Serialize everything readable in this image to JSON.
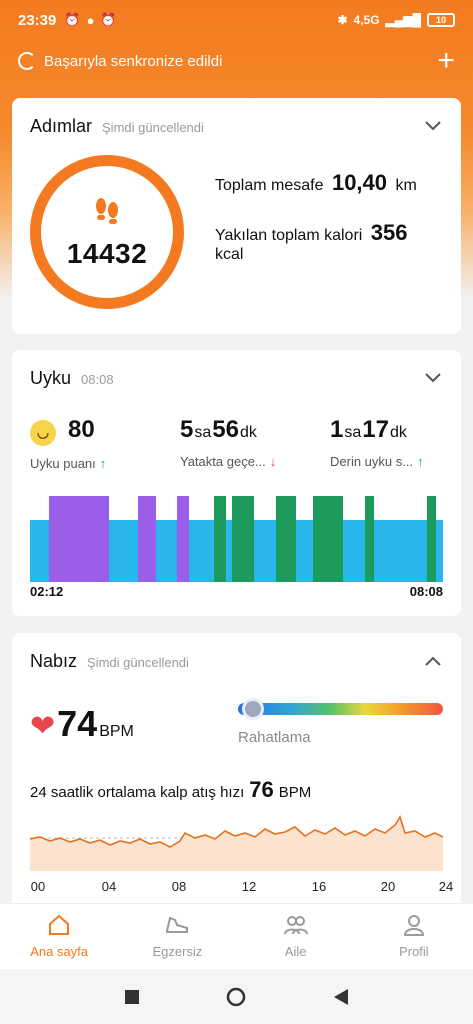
{
  "status_bar": {
    "time": "23:39",
    "network": "4,5G",
    "battery": "10"
  },
  "sync": {
    "text": "Başarıyla senkronize edildi"
  },
  "steps": {
    "title": "Adımlar",
    "subtitle": "Şimdi güncellendi",
    "count": "14432",
    "distance_label": "Toplam mesafe",
    "distance_value": "10,40",
    "distance_unit": "km",
    "calorie_label": "Yakılan toplam kalori",
    "calorie_value": "356",
    "calorie_unit": "kcal"
  },
  "sleep": {
    "title": "Uyku",
    "subtitle": "08:08",
    "score": "80",
    "score_label": "Uyku puanı",
    "in_bed_h": "5",
    "in_bed_h_unit": "sa",
    "in_bed_m": "56",
    "in_bed_m_unit": "dk",
    "in_bed_label": "Yatakta geçe...",
    "deep_h": "1",
    "deep_h_unit": "sa",
    "deep_m": "17",
    "deep_m_unit": "dk",
    "deep_label": "Derin uyku s...",
    "start": "02:12",
    "end": "08:08",
    "colors": {
      "light": "#29b6ea",
      "rem": "#9b5ee8",
      "deep": "#1f9a5d"
    }
  },
  "heart": {
    "title": "Nabız",
    "subtitle": "Şimdi güncellendi",
    "current": "74",
    "unit": "BPM",
    "zone_label": "Rahatlama",
    "avg_label": "24 saatlik ortalama kalp atış hızı",
    "avg_value": "76",
    "avg_unit": "BPM",
    "x_ticks": [
      "00",
      "04",
      "08",
      "12",
      "16",
      "20",
      "24"
    ]
  },
  "nav": {
    "items": [
      {
        "label": "Ana sayfa",
        "icon": "home-icon"
      },
      {
        "label": "Egzersiz",
        "icon": "shoe-icon"
      },
      {
        "label": "Aile",
        "icon": "family-icon"
      },
      {
        "label": "Profil",
        "icon": "profile-icon"
      }
    ]
  },
  "accent": "#f47920"
}
